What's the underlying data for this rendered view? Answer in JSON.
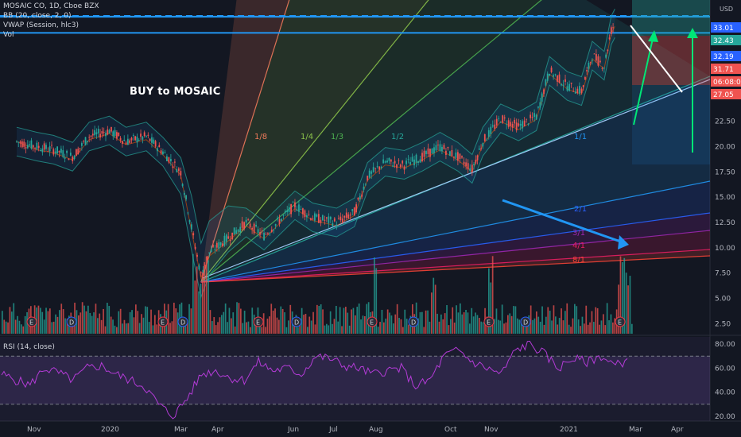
{
  "legend": {
    "symbol": "MOSAIC CO, 1D, Cboe BZX",
    "bb": "BB (20, close, 2, 0)",
    "vwap": "VWAP (Session, hlc3)",
    "vol": "Vol"
  },
  "annotation": "BUY to MOSAIC",
  "rsi_label": "RSI (14, close)",
  "currency": "USD",
  "price_tags": [
    {
      "text": "33.01",
      "color": "#2962ff"
    },
    {
      "text": "32.43",
      "color": "#26a69a"
    },
    {
      "text": "32.19",
      "color": "#2962ff"
    },
    {
      "text": "31.71",
      "color": "#ef5350"
    },
    {
      "text": "06:08:04",
      "color": "#ef5350"
    },
    {
      "text": "27.05",
      "color": "#ef5350"
    }
  ],
  "chart_data": [
    {
      "type": "candlestick",
      "title": "MOSAIC CO, 1D, Cboe BZX",
      "x_ticks": [
        "Nov",
        "2020",
        "Mar",
        "Apr",
        "Jun",
        "Jul",
        "Aug",
        "Oct",
        "Nov",
        "2021",
        "Mar",
        "Apr"
      ],
      "y_ticks": [
        2.5,
        5.0,
        7.5,
        10.0,
        12.5,
        15.0,
        17.5,
        20.0,
        22.5,
        25.0
      ],
      "y_range": [
        1.5,
        34.5
      ],
      "price_path": [
        {
          "date": "2019-10-15",
          "close": 20.5
        },
        {
          "date": "2019-11-01",
          "close": 20.0
        },
        {
          "date": "2019-11-15",
          "close": 19.7
        },
        {
          "date": "2019-12-01",
          "close": 19.0
        },
        {
          "date": "2019-12-15",
          "close": 21.0
        },
        {
          "date": "2020-01-01",
          "close": 21.6
        },
        {
          "date": "2020-01-15",
          "close": 20.5
        },
        {
          "date": "2020-02-01",
          "close": 21.0
        },
        {
          "date": "2020-02-15",
          "close": 19.5
        },
        {
          "date": "2020-03-01",
          "close": 17.5
        },
        {
          "date": "2020-03-10",
          "close": 12.0
        },
        {
          "date": "2020-03-18",
          "close": 7.3
        },
        {
          "date": "2020-03-25",
          "close": 9.5
        },
        {
          "date": "2020-04-10",
          "close": 11.0
        },
        {
          "date": "2020-04-25",
          "close": 12.5
        },
        {
          "date": "2020-05-10",
          "close": 11.2
        },
        {
          "date": "2020-06-05",
          "close": 14.2
        },
        {
          "date": "2020-06-20",
          "close": 13.0
        },
        {
          "date": "2020-07-10",
          "close": 12.5
        },
        {
          "date": "2020-07-25",
          "close": 13.5
        },
        {
          "date": "2020-08-05",
          "close": 17.0
        },
        {
          "date": "2020-08-20",
          "close": 18.5
        },
        {
          "date": "2020-09-05",
          "close": 18.2
        },
        {
          "date": "2020-09-20",
          "close": 19.0
        },
        {
          "date": "2020-10-05",
          "close": 20.0
        },
        {
          "date": "2020-10-20",
          "close": 19.0
        },
        {
          "date": "2020-11-01",
          "close": 17.8
        },
        {
          "date": "2020-11-10",
          "close": 20.5
        },
        {
          "date": "2020-11-25",
          "close": 22.8
        },
        {
          "date": "2020-12-10",
          "close": 22.0
        },
        {
          "date": "2020-12-25",
          "close": 23.0
        },
        {
          "date": "2021-01-05",
          "close": 27.5
        },
        {
          "date": "2021-01-20",
          "close": 26.0
        },
        {
          "date": "2021-02-01",
          "close": 25.5
        },
        {
          "date": "2021-02-10",
          "close": 29.0
        },
        {
          "date": "2021-02-20",
          "close": 28.0
        },
        {
          "date": "2021-02-26",
          "close": 31.5
        },
        {
          "date": "2021-03-01",
          "close": 32.2
        }
      ],
      "fan_labels": [
        "1/8",
        "1/4",
        "1/3",
        "1/2",
        "1/1",
        "2/1",
        "3/1",
        "4/1",
        "8/1"
      ],
      "horizontal_levels": [
        33.01,
        32.19
      ],
      "earnings_markers": [
        "E",
        "D",
        "E",
        "D",
        "E",
        "D",
        "E",
        "D",
        "E",
        "E"
      ],
      "volume_spikes": [
        "2020-03",
        "2020-08",
        "2020-10",
        "2020-11",
        "2021-02"
      ]
    },
    {
      "type": "line",
      "title": "RSI (14, close)",
      "y_ticks": [
        20.0,
        40.0,
        60.0,
        80.0
      ],
      "y_range": [
        16,
        86
      ],
      "bands": [
        30,
        70
      ],
      "series": [
        {
          "values": [
            55,
            50,
            46,
            60,
            56,
            50,
            60,
            62,
            55,
            50,
            45,
            30,
            20,
            35,
            55,
            58,
            52,
            50,
            65,
            58,
            60,
            55,
            70,
            68,
            62,
            60,
            55,
            58,
            60,
            45,
            50,
            70,
            75,
            65,
            60,
            55,
            75,
            80,
            72,
            60,
            68,
            65,
            70,
            62,
            68
          ]
        }
      ]
    }
  ]
}
